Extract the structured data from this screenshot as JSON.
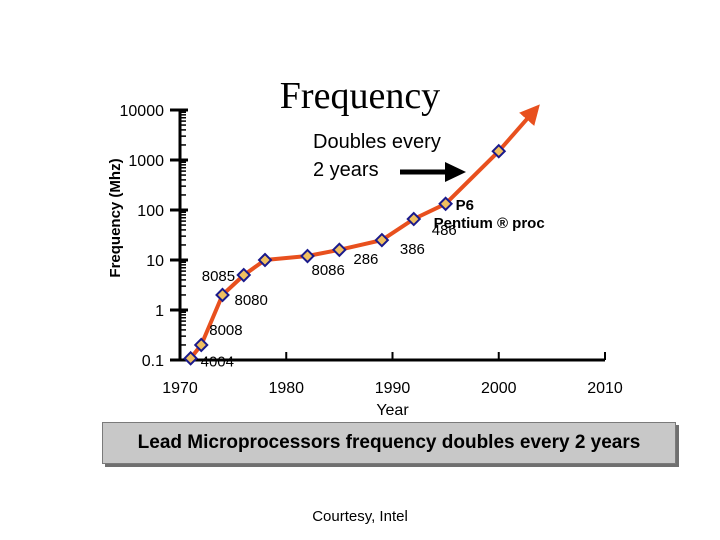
{
  "slide": {
    "title": "Frequency",
    "caption": "Lead Microprocessors frequency doubles every 2 years",
    "credit": "Courtesy, Intel"
  },
  "chart_data": {
    "type": "line",
    "ylabel": "Frequency (Mhz)",
    "xlabel": "Year",
    "log_y": true,
    "xlim": [
      1970,
      2010
    ],
    "ylim": [
      0.1,
      10000
    ],
    "x_ticks": [
      "1970",
      "1980",
      "1990",
      "2000",
      "2010"
    ],
    "y_ticks": [
      "0.1",
      "1",
      "10",
      "100",
      "1000",
      "10000"
    ],
    "series": [
      {
        "points": [
          {
            "x": 1971,
            "y": 0.108,
            "label": "4004"
          },
          {
            "x": 1972,
            "y": 0.2,
            "label": "8008"
          },
          {
            "x": 1974,
            "y": 2,
            "label": "8080"
          },
          {
            "x": 1976,
            "y": 5,
            "label": "8085"
          },
          {
            "x": 1978,
            "y": 10
          },
          {
            "x": 1982,
            "y": 12,
            "label": "8086"
          },
          {
            "x": 1985,
            "y": 16,
            "label": "286"
          },
          {
            "x": 1989,
            "y": 25,
            "label": "386"
          },
          {
            "x": 1992,
            "y": 66,
            "label": "486"
          },
          {
            "x": 1995,
            "y": 133,
            "label": "P6 Pentium ® proc"
          },
          {
            "x": 2000,
            "y": 1500
          }
        ]
      }
    ],
    "trend_extension": {
      "x": 2003,
      "y": 8000
    },
    "annotation": {
      "text": [
        "Doubles every",
        "2 years"
      ]
    },
    "colors": {
      "line": "#e8501e",
      "marker": "#f0c060",
      "marker_border": "#1a1a8c"
    }
  }
}
